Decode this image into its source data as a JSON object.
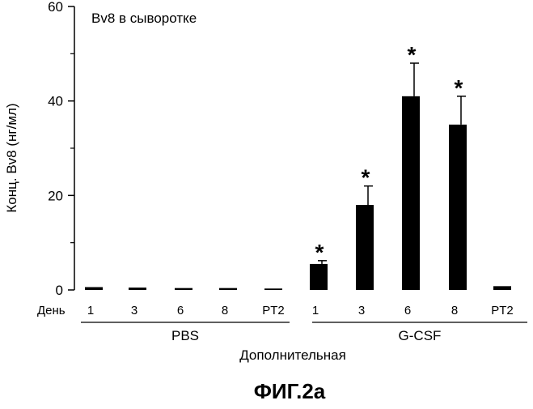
{
  "chart_data": {
    "type": "bar",
    "title": "Bv8 в сыворотке",
    "ylabel": "Конц. Bv8 (нг/мл)",
    "xlabel": "Дополнительная",
    "day_label": "День",
    "ylim": [
      0,
      60
    ],
    "yticks": [
      0,
      20,
      40,
      60
    ],
    "categories": [
      "1",
      "3",
      "6",
      "8",
      "PT2",
      "1",
      "3",
      "6",
      "8",
      "PT2"
    ],
    "values": [
      0.6,
      0.5,
      0.4,
      0.4,
      0.3,
      5.5,
      18.0,
      41.0,
      35.0,
      0.8
    ],
    "errors": [
      0,
      0,
      0,
      0,
      0,
      0.7,
      4.0,
      7.0,
      6.0,
      0
    ],
    "significant": [
      false,
      false,
      false,
      false,
      false,
      true,
      true,
      true,
      true,
      false
    ],
    "star_symbol": "*",
    "groups": [
      {
        "name": "PBS",
        "indices": [
          0,
          1,
          2,
          3,
          4
        ]
      },
      {
        "name": "G-CSF",
        "indices": [
          5,
          6,
          7,
          8,
          9
        ]
      }
    ],
    "bar_color": "#000000"
  },
  "figure_caption": "ФИГ.2a"
}
